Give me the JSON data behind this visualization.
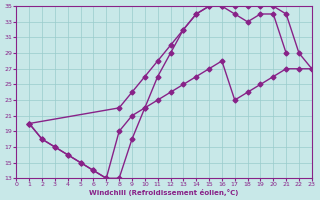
{
  "line1_x": [
    1,
    2,
    3,
    4,
    5,
    6,
    7,
    8,
    9,
    10,
    11,
    12,
    13,
    14,
    15,
    16,
    17,
    18,
    19,
    20,
    21,
    22,
    23
  ],
  "line1_y": [
    20,
    18,
    17,
    16,
    15,
    14,
    13,
    13,
    18,
    22,
    26,
    29,
    32,
    34,
    35,
    35,
    35,
    35,
    35,
    35,
    34,
    29,
    27
  ],
  "line2_x": [
    1,
    8,
    9,
    10,
    11,
    12,
    13,
    14,
    15,
    16,
    17,
    18,
    19,
    20,
    21
  ],
  "line2_y": [
    20,
    22,
    24,
    26,
    28,
    30,
    32,
    34,
    35,
    35,
    34,
    33,
    34,
    34,
    29
  ],
  "line3_x": [
    1,
    2,
    3,
    4,
    5,
    6,
    7,
    8,
    9,
    10,
    11,
    12,
    13,
    14,
    15,
    16,
    17,
    18,
    19,
    20,
    21,
    22,
    23
  ],
  "line3_y": [
    20,
    18,
    17,
    16,
    15,
    14,
    13,
    19,
    21,
    22,
    23,
    24,
    25,
    26,
    27,
    28,
    23,
    24,
    25,
    26,
    27,
    27,
    27
  ],
  "line_color": "#882288",
  "bg_color": "#c8e8e8",
  "grid_color": "#99cccc",
  "xlabel": "Windchill (Refroidissement éolien,°C)",
  "xlim": [
    0,
    23
  ],
  "ylim": [
    13,
    35
  ],
  "yticks": [
    13,
    15,
    17,
    19,
    21,
    23,
    25,
    27,
    29,
    31,
    33,
    35
  ],
  "xticks": [
    0,
    1,
    2,
    3,
    4,
    5,
    6,
    7,
    8,
    9,
    10,
    11,
    12,
    13,
    14,
    15,
    16,
    17,
    18,
    19,
    20,
    21,
    22,
    23
  ],
  "marker": "D",
  "markersize": 2.5,
  "linewidth": 1.0
}
